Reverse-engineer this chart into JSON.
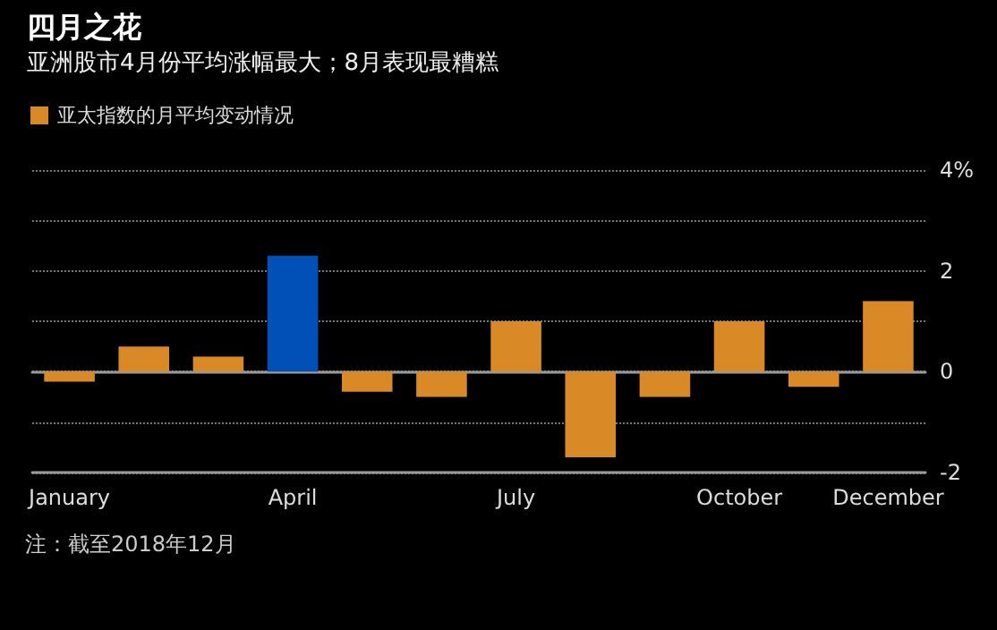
{
  "chart_data": {
    "type": "bar",
    "title": "四月之花",
    "subtitle": "亚洲股市4月份平均涨幅最大；8月表现最糟糕",
    "categories": [
      "January",
      null,
      null,
      "April",
      null,
      null,
      "July",
      null,
      null,
      "October",
      null,
      "December"
    ],
    "series": [
      {
        "name": "亚太指数的月平均变动情况",
        "color": "#d98a26",
        "colors": [
          "#d98a26",
          "#d98a26",
          "#d98a26",
          "#0050b8",
          "#d98a26",
          "#d98a26",
          "#d98a26",
          "#d98a26",
          "#d98a26",
          "#d98a26",
          "#d98a26",
          "#d98a26"
        ],
        "values": [
          -0.2,
          0.5,
          0.3,
          2.3,
          -0.4,
          -0.5,
          1.0,
          -1.7,
          -0.5,
          1.0,
          -0.3,
          1.4
        ]
      }
    ],
    "ylim": [
      -2,
      4
    ],
    "yticks": [
      -2,
      0,
      2,
      {
        "value": 4,
        "label": "4%"
      }
    ],
    "grid": "y",
    "legend": "top left",
    "annotations": [
      "注：截至2018年12月"
    ]
  }
}
